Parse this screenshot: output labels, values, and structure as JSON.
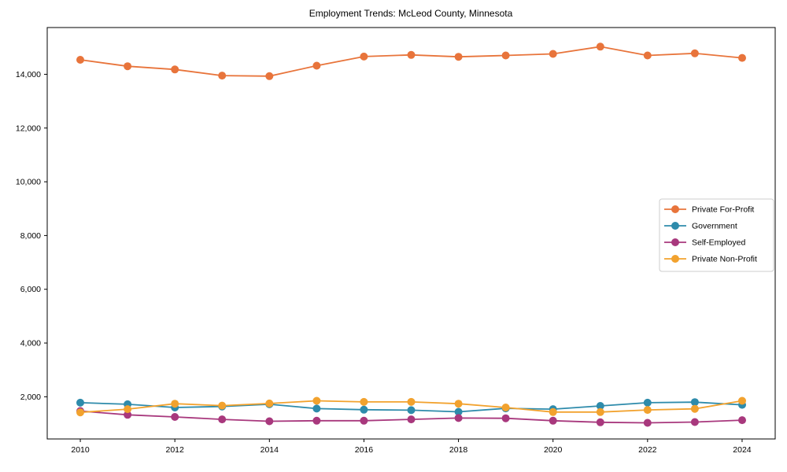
{
  "chart_data": {
    "type": "line",
    "title": "Employment Trends: McLeod County, Minnesota",
    "xlabel": "",
    "ylabel": "",
    "x": [
      2010,
      2011,
      2012,
      2013,
      2014,
      2015,
      2016,
      2017,
      2018,
      2019,
      2020,
      2021,
      2022,
      2023,
      2024
    ],
    "x_ticks": [
      2010,
      2012,
      2014,
      2016,
      2018,
      2020,
      2022,
      2024
    ],
    "x_tick_labels": [
      "2010",
      "2012",
      "2014",
      "2016",
      "2018",
      "2020",
      "2022",
      "2024"
    ],
    "y_ticks": [
      2000,
      4000,
      6000,
      8000,
      10000,
      12000,
      14000
    ],
    "y_tick_labels": [
      "2,000",
      "4,000",
      "6,000",
      "8,000",
      "10,000",
      "12,000",
      "14,000"
    ],
    "xlim": [
      2009.3,
      2024.7
    ],
    "ylim": [
      430,
      15740
    ],
    "grid": false,
    "legend_position": "right",
    "series": [
      {
        "name": "Private For-Profit",
        "color": "#e8743b",
        "values": [
          14540,
          14300,
          14180,
          13950,
          13930,
          14320,
          14660,
          14720,
          14650,
          14700,
          14760,
          15030,
          14700,
          14780,
          14610
        ]
      },
      {
        "name": "Government",
        "color": "#2e8bab",
        "values": [
          1780,
          1720,
          1600,
          1640,
          1720,
          1560,
          1520,
          1500,
          1440,
          1570,
          1540,
          1660,
          1780,
          1800,
          1700
        ]
      },
      {
        "name": "Self-Employed",
        "color": "#a8387d",
        "values": [
          1470,
          1330,
          1250,
          1160,
          1090,
          1110,
          1110,
          1160,
          1210,
          1200,
          1110,
          1050,
          1030,
          1060,
          1130
        ]
      },
      {
        "name": "Private Non-Profit",
        "color": "#f2a22e",
        "values": [
          1420,
          1540,
          1740,
          1670,
          1750,
          1850,
          1810,
          1810,
          1740,
          1600,
          1430,
          1430,
          1510,
          1550,
          1850
        ]
      }
    ],
    "style": {
      "spine_color": "#000000",
      "legend_border_color": "#cccccc",
      "background": "#ffffff",
      "line_width": 1.8,
      "marker_radius": 5
    }
  }
}
